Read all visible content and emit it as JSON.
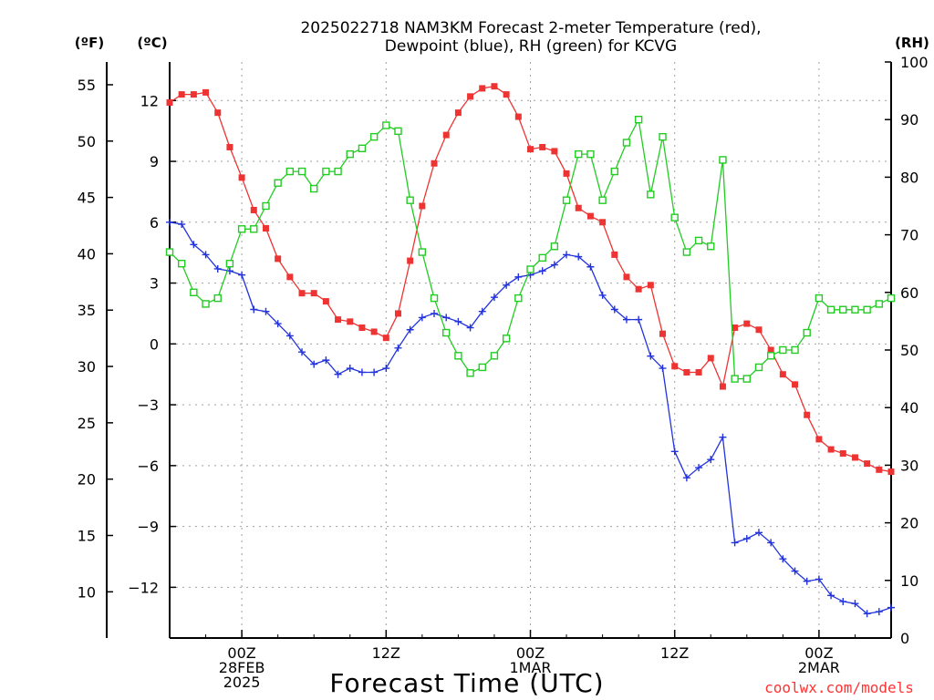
{
  "chart_data": {
    "type": "line",
    "title_line1": "2025022718 NAM3KM Forecast 2-meter Temperature (red),",
    "title_line2": "Dewpoint (blue), RH (green) for KCVG",
    "xlabel": "Forecast Time (UTC)",
    "left_unit_f": "(ºF)",
    "left_unit_c": "(ºC)",
    "right_unit": "(RH)",
    "credit": "coolwx.com/models",
    "grid": true,
    "x_unit": "hours since 2025-02-27 18Z",
    "xlim": [
      0,
      60
    ],
    "ylim_c": [
      -14.5,
      13.9
    ],
    "ylim_rh": [
      0,
      100
    ],
    "yticks_f": [
      10,
      15,
      20,
      25,
      30,
      35,
      40,
      45,
      50,
      55
    ],
    "yticks_c": [
      -12,
      -9,
      -6,
      -3,
      0,
      3,
      6,
      9,
      12
    ],
    "yticks_rh": [
      0,
      10,
      20,
      30,
      40,
      50,
      60,
      70,
      80,
      90,
      100
    ],
    "x_ticks": [
      {
        "x": 6,
        "lines": [
          "00Z",
          "28FEB",
          "2025"
        ]
      },
      {
        "x": 18,
        "lines": [
          "12Z"
        ]
      },
      {
        "x": 30,
        "lines": [
          "00Z",
          "1MAR"
        ]
      },
      {
        "x": 42,
        "lines": [
          "12Z"
        ]
      },
      {
        "x": 54,
        "lines": [
          "00Z",
          "2MAR"
        ]
      }
    ],
    "series": [
      {
        "name": "Temperature",
        "axis": "c",
        "color": "#ee3333",
        "marker": "filled-square",
        "x": [
          0,
          1,
          2,
          3,
          4,
          5,
          6,
          7,
          8,
          9,
          10,
          11,
          12,
          13,
          14,
          15,
          16,
          17,
          18,
          19,
          20,
          21,
          22,
          23,
          24,
          25,
          26,
          27,
          28,
          29,
          30,
          31,
          32,
          33,
          34,
          35,
          36,
          37,
          38,
          39,
          40,
          41,
          42,
          43,
          44,
          45,
          46,
          47,
          48,
          49,
          50,
          51,
          52,
          53,
          54,
          55,
          56,
          57,
          58,
          59,
          60
        ],
        "values": [
          11.9,
          12.3,
          12.3,
          12.4,
          11.4,
          9.7,
          8.2,
          6.6,
          5.7,
          4.2,
          3.3,
          2.5,
          2.5,
          2.1,
          1.2,
          1.1,
          0.8,
          0.6,
          0.3,
          1.5,
          4.1,
          6.8,
          8.9,
          10.3,
          11.4,
          12.2,
          12.6,
          12.7,
          12.3,
          11.2,
          9.6,
          9.7,
          9.5,
          8.4,
          6.7,
          6.3,
          6.0,
          4.4,
          3.3,
          2.7,
          2.9,
          0.5,
          -1.1,
          -1.4,
          -1.4,
          -0.7,
          -2.1,
          0.8,
          1.0,
          0.7,
          -0.3,
          -1.5,
          -2.0,
          -3.5,
          -4.7,
          -5.2,
          -5.4,
          -5.6,
          -5.9,
          -6.2,
          -6.3
        ]
      },
      {
        "name": "Dewpoint",
        "axis": "c",
        "color": "#2233dd",
        "marker": "plus",
        "x": [
          0,
          1,
          2,
          3,
          4,
          5,
          6,
          7,
          8,
          9,
          10,
          11,
          12,
          13,
          14,
          15,
          16,
          17,
          18,
          19,
          20,
          21,
          22,
          23,
          24,
          25,
          26,
          27,
          28,
          29,
          30,
          31,
          32,
          33,
          34,
          35,
          36,
          37,
          38,
          39,
          40,
          41,
          42,
          43,
          44,
          45,
          46,
          47,
          48,
          49,
          50,
          51,
          52,
          53,
          54,
          55,
          56,
          57,
          58,
          59,
          60
        ],
        "values": [
          6.0,
          5.9,
          4.9,
          4.4,
          3.7,
          3.6,
          3.4,
          1.7,
          1.6,
          1.0,
          0.4,
          -0.4,
          -1.0,
          -0.8,
          -1.5,
          -1.2,
          -1.4,
          -1.4,
          -1.2,
          -0.2,
          0.7,
          1.3,
          1.5,
          1.3,
          1.1,
          0.8,
          1.6,
          2.3,
          2.9,
          3.3,
          3.4,
          3.6,
          3.9,
          4.4,
          4.3,
          3.8,
          2.4,
          1.7,
          1.2,
          1.2,
          -0.6,
          -1.2,
          -5.3,
          -6.6,
          -6.1,
          -5.7,
          -4.6,
          -9.8,
          -9.6,
          -9.3,
          -9.8,
          -10.6,
          -11.2,
          -11.7,
          -11.6,
          -12.4,
          -12.7,
          -12.8,
          -13.3,
          -13.2,
          -13.0
        ]
      },
      {
        "name": "RH",
        "axis": "rh",
        "color": "#22cc22",
        "marker": "open-square",
        "x": [
          0,
          1,
          2,
          3,
          4,
          5,
          6,
          7,
          8,
          9,
          10,
          11,
          12,
          13,
          14,
          15,
          16,
          17,
          18,
          19,
          20,
          21,
          22,
          23,
          24,
          25,
          26,
          27,
          28,
          29,
          30,
          31,
          32,
          33,
          34,
          35,
          36,
          37,
          38,
          39,
          40,
          41,
          42,
          43,
          44,
          45,
          46,
          47,
          48,
          49,
          50,
          51,
          52,
          53,
          54,
          55,
          56,
          57,
          58,
          59,
          60
        ],
        "values": [
          67,
          65,
          60,
          58,
          59,
          65,
          71,
          71,
          75,
          79,
          81,
          81,
          78,
          81,
          81,
          84,
          85,
          87,
          89,
          88,
          76,
          67,
          59,
          53,
          49,
          46,
          47,
          49,
          52,
          59,
          64,
          66,
          68,
          76,
          84,
          84,
          76,
          81,
          86,
          90,
          77,
          87,
          73,
          67,
          69,
          68,
          83,
          45,
          45,
          47,
          49,
          50,
          50,
          53,
          59,
          57,
          57,
          57,
          57,
          58,
          59
        ]
      }
    ]
  }
}
